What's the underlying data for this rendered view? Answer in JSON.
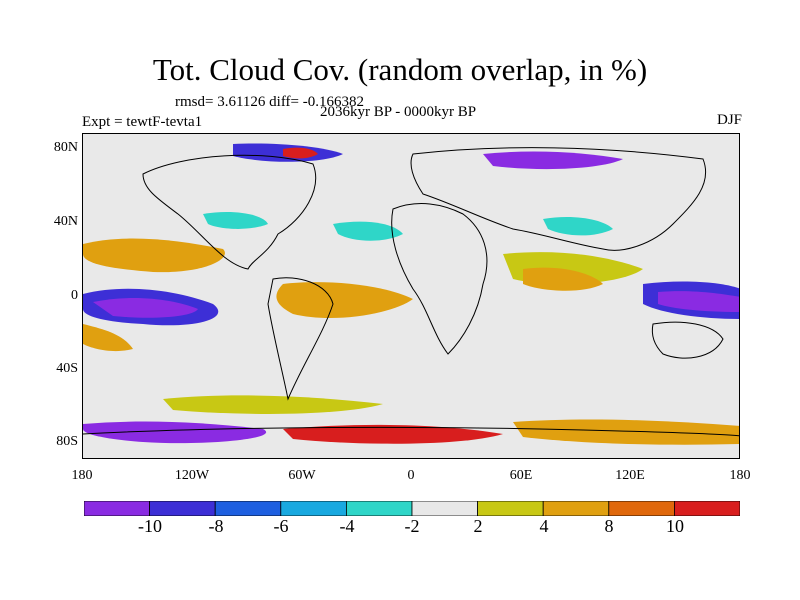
{
  "title": "Tot. Cloud Cov. (random overlap, in %)",
  "stats": "rmsd= 3.61126 diff= -0.166382",
  "period": "2036kyr BP - 0000kyr BP",
  "experiment": "Expt = tewtF-tevta1",
  "season": "DJF",
  "y_axis_labels": [
    "80N",
    "40N",
    "0",
    "40S",
    "80S"
  ],
  "x_axis_labels": [
    "180",
    "120W",
    "60W",
    "0",
    "60E",
    "120E",
    "180"
  ],
  "colorbar": {
    "labels": [
      "-10",
      "-8",
      "-6",
      "-4",
      "-2",
      "2",
      "4",
      "8",
      "10"
    ],
    "colors": [
      "#8a2be2",
      "#3d2fd6",
      "#1e5fe0",
      "#19a9e0",
      "#2fd6c8",
      "#e8e8e8",
      "#c8c814",
      "#e0a010",
      "#e0680c",
      "#d81e1e"
    ]
  }
}
